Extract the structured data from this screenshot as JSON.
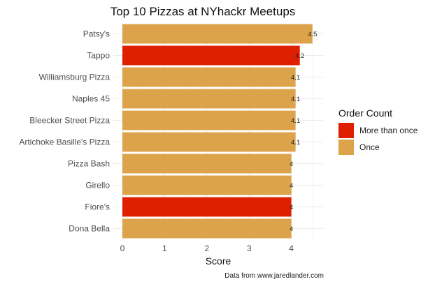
{
  "chart_data": {
    "type": "bar",
    "orientation": "horizontal",
    "title": "Top 10 Pizzas at NYhackr Meetups",
    "xlabel": "Score",
    "ylabel": "",
    "caption": "Data from www.jaredlander.com",
    "xlim": [
      0,
      4.5
    ],
    "xticks": [
      0,
      1,
      2,
      3,
      4
    ],
    "grid": true,
    "legend": {
      "title": "Order Count",
      "position": "right",
      "entries": [
        {
          "label": "More than once",
          "color": "#DE2000"
        },
        {
          "label": "Once",
          "color": "#DCA34A"
        }
      ]
    },
    "categories": [
      "Patsy's",
      "Tappo",
      "Williamsburg Pizza",
      "Naples 45",
      "Bleecker Street Pizza",
      "Artichoke Basille's Pizza",
      "Pizza Bash",
      "Girello",
      "Fiore's",
      "Dona Bella"
    ],
    "values": [
      4.5,
      4.2,
      4.1,
      4.1,
      4.1,
      4.1,
      4.0,
      4.0,
      4.0,
      4.0
    ],
    "value_labels": [
      "4.5",
      "4.2",
      "4.1",
      "4.1",
      "4.1",
      "4.1",
      "4",
      "4",
      "4",
      "4"
    ],
    "order_count": [
      "Once",
      "More than once",
      "Once",
      "Once",
      "Once",
      "Once",
      "Once",
      "Once",
      "More than once",
      "Once"
    ]
  }
}
